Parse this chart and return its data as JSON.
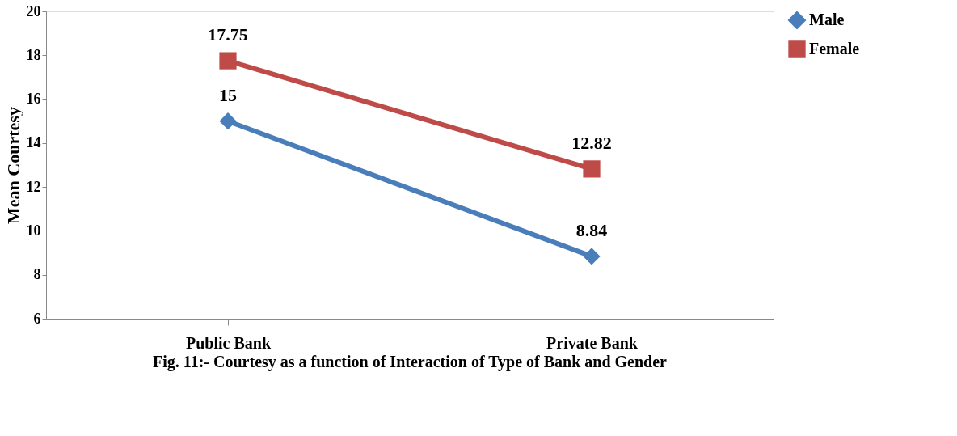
{
  "chart_data": {
    "type": "line",
    "title": "Fig. 11:- Courtesy as a function of Interaction of Type of Bank and Gender",
    "ylabel": "Mean Courtesy",
    "categories": [
      "Public Bank",
      "Private Bank"
    ],
    "series": [
      {
        "name": "Male",
        "color": "#4a7ebb",
        "values": [
          15,
          8.84
        ],
        "marker": "diamond"
      },
      {
        "name": "Female",
        "color": "#be4b48",
        "values": [
          17.75,
          12.82
        ],
        "marker": "square"
      }
    ],
    "ylim": [
      6,
      20
    ],
    "yticks": [
      6,
      8,
      10,
      12,
      14,
      16,
      18,
      20
    ],
    "data_labels": true,
    "legend": "right",
    "grid": false
  }
}
